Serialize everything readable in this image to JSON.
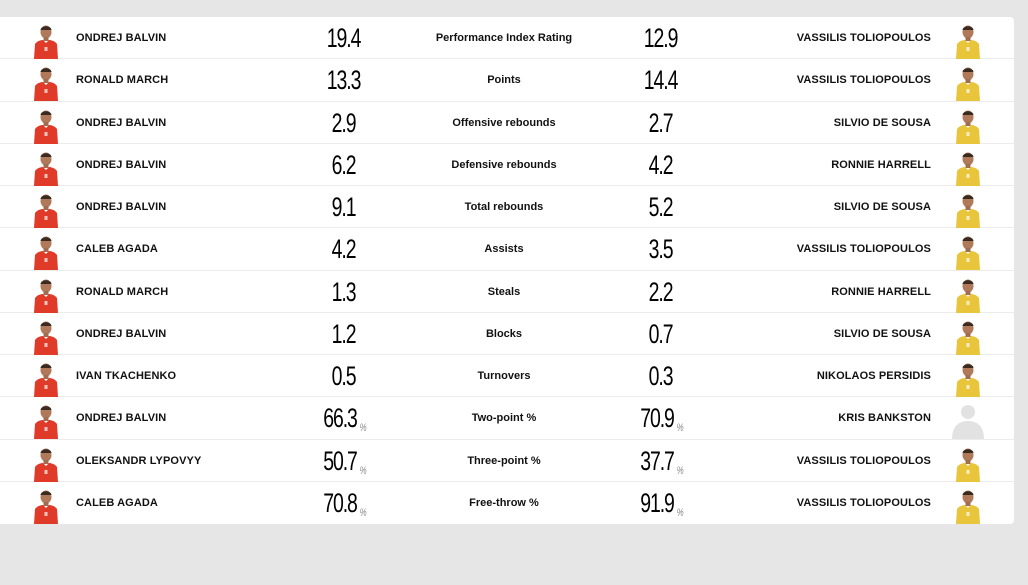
{
  "colors": {
    "page_bg": "#e6e6e6",
    "card_bg": "#ffffff",
    "home_jersey": "#e03a28",
    "away_jersey": "#e8c53a",
    "placeholder": "#e0e0e0"
  },
  "rows": [
    {
      "left_player": "ONDREJ BALVIN",
      "left_value": "19.4",
      "left_pct": "",
      "category": "Performance Index Rating",
      "right_value": "12.9",
      "right_pct": "",
      "right_player": "VASSILIS TOLIOPOULOS",
      "left_avatar": "home-player-photo",
      "right_avatar": "away-player-photo"
    },
    {
      "left_player": "RONALD MARCH",
      "left_value": "13.3",
      "left_pct": "",
      "category": "Points",
      "right_value": "14.4",
      "right_pct": "",
      "right_player": "VASSILIS TOLIOPOULOS",
      "left_avatar": "home-player-photo",
      "right_avatar": "away-player-photo"
    },
    {
      "left_player": "ONDREJ BALVIN",
      "left_value": "2.9",
      "left_pct": "",
      "category": "Offensive rebounds",
      "right_value": "2.7",
      "right_pct": "",
      "right_player": "SILVIO DE SOUSA",
      "left_avatar": "home-player-photo",
      "right_avatar": "away-player-photo"
    },
    {
      "left_player": "ONDREJ BALVIN",
      "left_value": "6.2",
      "left_pct": "",
      "category": "Defensive rebounds",
      "right_value": "4.2",
      "right_pct": "",
      "right_player": "RONNIE HARRELL",
      "left_avatar": "home-player-photo",
      "right_avatar": "away-player-photo"
    },
    {
      "left_player": "ONDREJ BALVIN",
      "left_value": "9.1",
      "left_pct": "",
      "category": "Total rebounds",
      "right_value": "5.2",
      "right_pct": "",
      "right_player": "SILVIO DE SOUSA",
      "left_avatar": "home-player-photo",
      "right_avatar": "away-player-photo"
    },
    {
      "left_player": "CALEB AGADA",
      "left_value": "4.2",
      "left_pct": "",
      "category": "Assists",
      "right_value": "3.5",
      "right_pct": "",
      "right_player": "VASSILIS TOLIOPOULOS",
      "left_avatar": "home-player-photo",
      "right_avatar": "away-player-photo"
    },
    {
      "left_player": "RONALD MARCH",
      "left_value": "1.3",
      "left_pct": "",
      "category": "Steals",
      "right_value": "2.2",
      "right_pct": "",
      "right_player": "RONNIE HARRELL",
      "left_avatar": "home-player-photo",
      "right_avatar": "away-player-photo"
    },
    {
      "left_player": "ONDREJ BALVIN",
      "left_value": "1.2",
      "left_pct": "",
      "category": "Blocks",
      "right_value": "0.7",
      "right_pct": "",
      "right_player": "SILVIO DE SOUSA",
      "left_avatar": "home-player-photo",
      "right_avatar": "away-player-photo"
    },
    {
      "left_player": "IVAN TKACHENKO",
      "left_value": "0.5",
      "left_pct": "",
      "category": "Turnovers",
      "right_value": "0.3",
      "right_pct": "",
      "right_player": "NIKOLAOS PERSIDIS",
      "left_avatar": "home-player-photo",
      "right_avatar": "away-player-photo"
    },
    {
      "left_player": "ONDREJ BALVIN",
      "left_value": "66.3",
      "left_pct": "%",
      "category": "Two-point %",
      "right_value": "70.9",
      "right_pct": "%",
      "right_player": "KRIS BANKSTON",
      "left_avatar": "home-player-photo",
      "right_avatar": "placeholder-silhouette"
    },
    {
      "left_player": "OLEKSANDR LYPOVYY",
      "left_value": "50.7",
      "left_pct": "%",
      "category": "Three-point %",
      "right_value": "37.7",
      "right_pct": "%",
      "right_player": "VASSILIS TOLIOPOULOS",
      "left_avatar": "home-player-photo",
      "right_avatar": "away-player-photo"
    },
    {
      "left_player": "CALEB AGADA",
      "left_value": "70.8",
      "left_pct": "%",
      "category": "Free-throw %",
      "right_value": "91.9",
      "right_pct": "%",
      "right_player": "VASSILIS TOLIOPOULOS",
      "left_avatar": "home-player-photo",
      "right_avatar": "away-player-photo"
    }
  ]
}
